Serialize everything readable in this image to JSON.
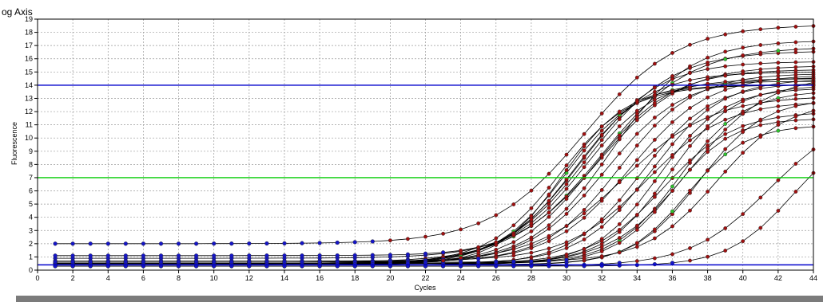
{
  "chart_data": {
    "type": "line",
    "title": "og Axis",
    "xlabel": "Cycles",
    "ylabel": "Fluorescence",
    "xlim": [
      0,
      44
    ],
    "ylim": [
      0,
      19
    ],
    "x_ticks": [
      0,
      2,
      4,
      6,
      8,
      10,
      12,
      14,
      16,
      18,
      20,
      22,
      24,
      26,
      28,
      30,
      32,
      34,
      36,
      38,
      40,
      42,
      44
    ],
    "y_ticks": [
      0,
      1,
      2,
      3,
      4,
      5,
      6,
      7,
      8,
      9,
      10,
      11,
      12,
      13,
      14,
      15,
      16,
      17,
      18,
      19
    ],
    "grid": true,
    "legend": "none",
    "threshold_lines": [
      {
        "y": 14,
        "color": "#0000cc"
      },
      {
        "y": 7,
        "color": "#00cc00"
      },
      {
        "y": 0.4,
        "color": "#0000cc"
      }
    ],
    "colors": {
      "curve": "#000000",
      "point_fill_amplifying": "#a01010",
      "point_fill_flat": "#1515c8",
      "point_fill_highlight": "#2ec22e",
      "grid": "#9a9a9a"
    },
    "curves": [
      {
        "baseline": 2.0,
        "plateau": 18.6,
        "midpoint": 31.0,
        "slope": 0.38
      },
      {
        "baseline": 0.5,
        "plateau": 17.4,
        "midpoint": 32.5,
        "slope": 0.45
      },
      {
        "baseline": 0.4,
        "plateau": 16.6,
        "midpoint": 31.2,
        "slope": 0.42
      },
      {
        "baseline": 0.6,
        "plateau": 16.9,
        "midpoint": 32.0,
        "slope": 0.4
      },
      {
        "baseline": 0.5,
        "plateau": 15.8,
        "midpoint": 30.8,
        "slope": 0.45
      },
      {
        "baseline": 0.9,
        "plateau": 15.5,
        "midpoint": 31.8,
        "slope": 0.42
      },
      {
        "baseline": 0.5,
        "plateau": 15.0,
        "midpoint": 30.5,
        "slope": 0.48
      },
      {
        "baseline": 0.4,
        "plateau": 15.2,
        "midpoint": 31.5,
        "slope": 0.45
      },
      {
        "baseline": 0.5,
        "plateau": 14.6,
        "midpoint": 32.2,
        "slope": 0.46
      },
      {
        "baseline": 0.6,
        "plateau": 14.9,
        "midpoint": 33.0,
        "slope": 0.48
      },
      {
        "baseline": 0.4,
        "plateau": 14.3,
        "midpoint": 30.0,
        "slope": 0.5
      },
      {
        "baseline": 0.5,
        "plateau": 14.0,
        "midpoint": 29.6,
        "slope": 0.5
      },
      {
        "baseline": 0.6,
        "plateau": 14.8,
        "midpoint": 33.6,
        "slope": 0.45
      },
      {
        "baseline": 0.4,
        "plateau": 14.2,
        "midpoint": 34.2,
        "slope": 0.5
      },
      {
        "baseline": 0.5,
        "plateau": 14.5,
        "midpoint": 34.8,
        "slope": 0.5
      },
      {
        "baseline": 0.4,
        "plateau": 13.8,
        "midpoint": 35.2,
        "slope": 0.55
      },
      {
        "baseline": 0.5,
        "plateau": 14.0,
        "midpoint": 35.8,
        "slope": 0.55
      },
      {
        "baseline": 0.5,
        "plateau": 13.6,
        "midpoint": 36.4,
        "slope": 0.55
      },
      {
        "baseline": 0.4,
        "plateau": 14.8,
        "midpoint": 37.0,
        "slope": 0.45
      },
      {
        "baseline": 0.6,
        "plateau": 13.2,
        "midpoint": 33.2,
        "slope": 0.4
      },
      {
        "baseline": 0.7,
        "plateau": 12.8,
        "midpoint": 34.5,
        "slope": 0.45
      },
      {
        "baseline": 0.5,
        "plateau": 12.0,
        "midpoint": 35.5,
        "slope": 0.5
      },
      {
        "baseline": 0.5,
        "plateau": 11.5,
        "midpoint": 36.0,
        "slope": 0.6
      },
      {
        "baseline": 0.4,
        "plateau": 13.0,
        "midpoint": 37.5,
        "slope": 0.55
      },
      {
        "baseline": 0.4,
        "plateau": 11.0,
        "midpoint": 36.8,
        "slope": 0.6
      },
      {
        "baseline": 0.6,
        "plateau": 12.8,
        "midpoint": 38.5,
        "slope": 0.5
      },
      {
        "baseline": 0.4,
        "plateau": 14.0,
        "midpoint": 29.8,
        "slope": 0.55
      },
      {
        "baseline": 1.1,
        "plateau": 14.5,
        "midpoint": 31.0,
        "slope": 0.5
      },
      {
        "baseline": 0.3,
        "plateau": 12.0,
        "midpoint": 41.5,
        "slope": 0.45
      },
      {
        "baseline": 0.3,
        "plateau": 11.0,
        "midpoint": 42.8,
        "slope": 0.55
      }
    ]
  },
  "footer_bar_color": "#7b7b7b"
}
